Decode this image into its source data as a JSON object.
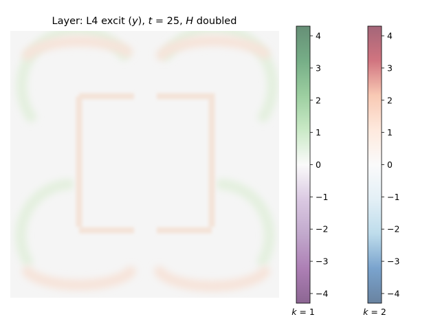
{
  "chart_data": {
    "type": "heatmap",
    "title": "Layer: L4 excit (y), t = 25, H doubled",
    "title_parts": {
      "prefix": "Layer: L4 excit (",
      "var": "y",
      "mid1": "), ",
      "t_symbol": "t",
      "t_eq": " = 25, ",
      "h_symbol": "H",
      "suffix": " doubled"
    },
    "grid": false,
    "description_colors": {
      "background": "#f5f5f5"
    },
    "colorbars": [
      {
        "name": "k = 1",
        "label_var": "k",
        "label_rest": " = 1",
        "colormap": "PRGn",
        "vmin": -4.3,
        "vmax": 4.3,
        "ticks": [
          4,
          3,
          2,
          1,
          0,
          -1,
          -2,
          -3,
          -4
        ],
        "tick_labels": [
          "4",
          "3",
          "2",
          "1",
          "0",
          "−1",
          "−2",
          "−3",
          "−4"
        ],
        "top_color": "#00441b",
        "bottom_color": "#40004b"
      },
      {
        "name": "k = 2",
        "label_var": "k",
        "label_rest": " = 2",
        "colormap": "RdBu_r",
        "vmin": -4.3,
        "vmax": 4.3,
        "ticks": [
          4,
          3,
          2,
          1,
          0,
          -1,
          -2,
          -3,
          -4
        ],
        "tick_labels": [
          "4",
          "3",
          "2",
          "1",
          "0",
          "−1",
          "−2",
          "−3",
          "−4"
        ],
        "top_color": "#67001f",
        "bottom_color": "#053061"
      }
    ],
    "image_features": [
      {
        "type": "arc",
        "quadrant": "top-left",
        "channel": "k = 1",
        "value": 0.3
      },
      {
        "type": "arc",
        "quadrant": "top-right",
        "channel": "k = 1",
        "value": 0.3
      },
      {
        "type": "arc",
        "quadrant": "bottom-left",
        "channel": "k = 1",
        "value": 0.3
      },
      {
        "type": "arc",
        "quadrant": "bottom-right",
        "channel": "k = 1",
        "value": 0.3
      },
      {
        "type": "arc",
        "quadrant": "top-left",
        "channel": "k = 2",
        "value": 0.3
      },
      {
        "type": "arc",
        "quadrant": "top-right",
        "channel": "k = 2",
        "value": 0.3
      },
      {
        "type": "arc",
        "quadrant": "bottom-left",
        "channel": "k = 2",
        "value": 0.3
      },
      {
        "type": "arc",
        "quadrant": "bottom-right",
        "channel": "k = 2",
        "value": 0.3
      },
      {
        "type": "square-outline",
        "channel": "k = 2",
        "value": 0.25
      }
    ]
  }
}
